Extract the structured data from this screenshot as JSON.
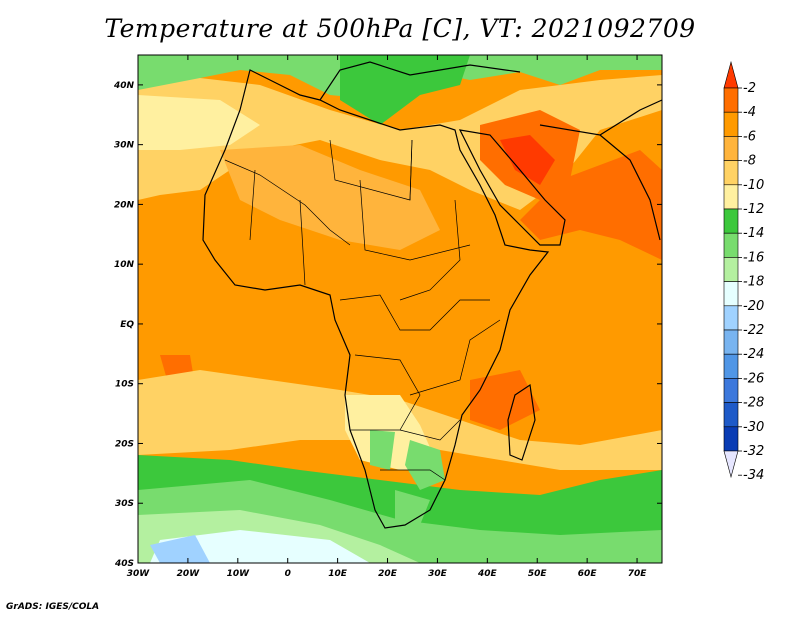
{
  "title": "Temperature at 500hPa [C], VT: 2021092709",
  "credit": "GrADS: IGES/COLA",
  "map": {
    "lon_range": [
      -30,
      75
    ],
    "lat_range": [
      -40,
      45
    ],
    "lon_ticks": [
      "30W",
      "20W",
      "10W",
      "0",
      "10E",
      "20E",
      "30E",
      "40E",
      "50E",
      "60E",
      "70E"
    ],
    "lat_ticks": [
      "40N",
      "30N",
      "20N",
      "10N",
      "EQ",
      "10S",
      "20S",
      "30S",
      "40S"
    ]
  },
  "colorbar": {
    "labels": [
      "-2",
      "-4",
      "-6",
      "-8",
      "-10",
      "-12",
      "-14",
      "-16",
      "-18",
      "-20",
      "-22",
      "-24",
      "-26",
      "-28",
      "-30",
      "-32",
      "-34"
    ],
    "colors": [
      "#ff3a00",
      "#ff6e00",
      "#ff9a00",
      "#ffb43c",
      "#ffd264",
      "#fff0a0",
      "#3cc83c",
      "#78dc6e",
      "#b4f0a0",
      "#e6ffff",
      "#a0d2ff",
      "#78b4f0",
      "#5096e6",
      "#3c78dc",
      "#1e5ac8",
      "#0a3cb4",
      "#001e8c"
    ]
  }
}
